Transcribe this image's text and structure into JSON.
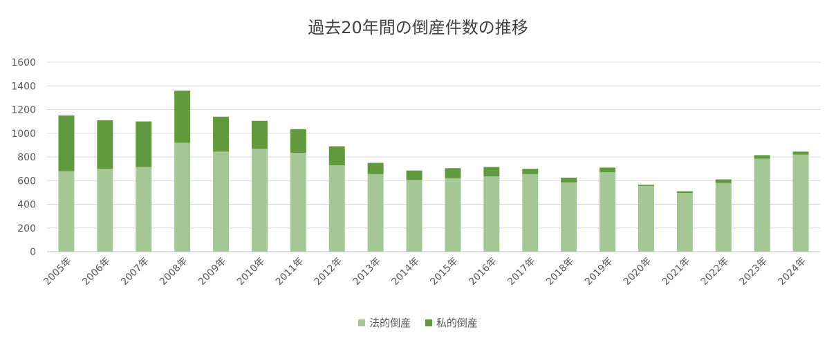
{
  "chart_data": {
    "type": "bar",
    "stacked": true,
    "title": "過去20年間の倒産件数の推移",
    "categories": [
      "2005年",
      "2006年",
      "2007年",
      "2008年",
      "2009年",
      "2010年",
      "2011年",
      "2012年",
      "2013年",
      "2014年",
      "2015年",
      "2016年",
      "2017年",
      "2018年",
      "2019年",
      "2020年",
      "2021年",
      "2022年",
      "2023年",
      "2024年"
    ],
    "series": [
      {
        "name": "法的倒産",
        "color": "#a5c796",
        "values": [
          680,
          700,
          715,
          920,
          845,
          870,
          835,
          730,
          655,
          605,
          620,
          635,
          655,
          585,
          670,
          555,
          495,
          580,
          785,
          820
        ]
      },
      {
        "name": "私的倒産",
        "color": "#60993e",
        "values": [
          470,
          410,
          385,
          440,
          295,
          235,
          200,
          160,
          95,
          80,
          85,
          80,
          45,
          40,
          40,
          10,
          15,
          30,
          30,
          25
        ]
      }
    ],
    "ylim": [
      0,
      1600
    ],
    "yticks": [
      0,
      200,
      400,
      600,
      800,
      1000,
      1200,
      1400,
      1600
    ],
    "grid": true,
    "legend_position": "bottom"
  }
}
